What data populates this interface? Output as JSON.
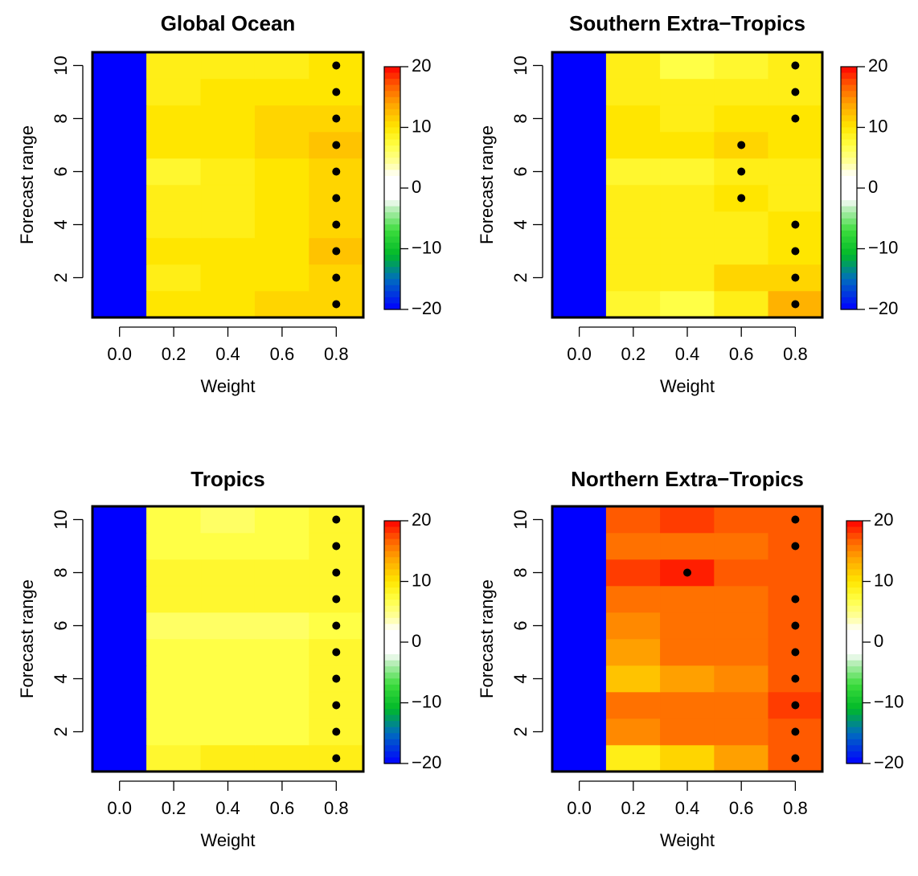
{
  "chart_data": [
    {
      "type": "heatmap",
      "title": "Global Ocean",
      "xlabel": "Weight",
      "ylabel": "Forecast range",
      "x": [
        0.0,
        0.2,
        0.4,
        0.6,
        0.8
      ],
      "y": [
        1,
        2,
        3,
        4,
        5,
        6,
        7,
        8,
        9,
        10
      ],
      "xticks": [
        "0.0",
        "0.2",
        "0.4",
        "0.6",
        "0.8"
      ],
      "yticks": [
        "2",
        "4",
        "6",
        "8",
        "10"
      ],
      "xlim": [
        -0.1,
        0.9
      ],
      "ylim": [
        0.5,
        10.5
      ],
      "values": [
        [
          -20,
          10,
          10,
          11,
          11
        ],
        [
          -20,
          9,
          10,
          10,
          11
        ],
        [
          -20,
          10,
          10,
          10,
          12
        ],
        [
          -20,
          9,
          9,
          10,
          11
        ],
        [
          -20,
          9,
          9,
          10,
          11
        ],
        [
          -20,
          8,
          9,
          10,
          11
        ],
        [
          -20,
          10,
          10,
          11,
          12
        ],
        [
          -20,
          10,
          10,
          11,
          11
        ],
        [
          -20,
          9,
          10,
          10,
          10
        ],
        [
          -20,
          9,
          9,
          9,
          10
        ]
      ],
      "significant": [
        [
          0.8,
          1
        ],
        [
          0.8,
          2
        ],
        [
          0.8,
          3
        ],
        [
          0.8,
          4
        ],
        [
          0.8,
          5
        ],
        [
          0.8,
          6
        ],
        [
          0.8,
          7
        ],
        [
          0.8,
          8
        ],
        [
          0.8,
          9
        ],
        [
          0.8,
          10
        ]
      ],
      "colorbar": {
        "ticks": [
          20,
          10,
          0,
          -10,
          -20
        ],
        "range": [
          -20,
          20
        ]
      }
    },
    {
      "type": "heatmap",
      "title": "Southern Extra−Tropics",
      "xlabel": "Weight",
      "ylabel": "Forecast range",
      "x": [
        0.0,
        0.2,
        0.4,
        0.6,
        0.8
      ],
      "y": [
        1,
        2,
        3,
        4,
        5,
        6,
        7,
        8,
        9,
        10
      ],
      "xticks": [
        "0.0",
        "0.2",
        "0.4",
        "0.6",
        "0.8"
      ],
      "yticks": [
        "2",
        "4",
        "6",
        "8",
        "10"
      ],
      "xlim": [
        -0.1,
        0.9
      ],
      "ylim": [
        0.5,
        10.5
      ],
      "values": [
        [
          -20,
          8,
          7,
          9,
          13
        ],
        [
          -20,
          9,
          9,
          11,
          11
        ],
        [
          -20,
          9,
          9,
          9,
          10
        ],
        [
          -20,
          9,
          9,
          9,
          10
        ],
        [
          -20,
          9,
          9,
          10,
          9
        ],
        [
          -20,
          8,
          8,
          9,
          9
        ],
        [
          -20,
          10,
          10,
          11,
          10
        ],
        [
          -20,
          10,
          9,
          10,
          10
        ],
        [
          -20,
          9,
          9,
          9,
          9
        ],
        [
          -20,
          9,
          7,
          8,
          9
        ]
      ],
      "significant": [
        [
          0.8,
          1
        ],
        [
          0.8,
          2
        ],
        [
          0.8,
          3
        ],
        [
          0.8,
          4
        ],
        [
          0.6,
          5
        ],
        [
          0.6,
          6
        ],
        [
          0.6,
          7
        ],
        [
          0.8,
          8
        ],
        [
          0.8,
          9
        ],
        [
          0.8,
          10
        ]
      ],
      "colorbar": {
        "ticks": [
          20,
          10,
          0,
          -10,
          -20
        ],
        "range": [
          -20,
          20
        ]
      }
    },
    {
      "type": "heatmap",
      "title": "Tropics",
      "xlabel": "Weight",
      "ylabel": "Forecast range",
      "x": [
        0.0,
        0.2,
        0.4,
        0.6,
        0.8
      ],
      "y": [
        1,
        2,
        3,
        4,
        5,
        6,
        7,
        8,
        9,
        10
      ],
      "xticks": [
        "0.0",
        "0.2",
        "0.4",
        "0.6",
        "0.8"
      ],
      "yticks": [
        "2",
        "4",
        "6",
        "8",
        "10"
      ],
      "xlim": [
        -0.1,
        0.9
      ],
      "ylim": [
        0.5,
        10.5
      ],
      "values": [
        [
          -20,
          8,
          9,
          9,
          9
        ],
        [
          -20,
          7,
          7,
          7,
          8
        ],
        [
          -20,
          7,
          7,
          7,
          8
        ],
        [
          -20,
          7,
          7,
          7,
          8
        ],
        [
          -20,
          7,
          7,
          7,
          8
        ],
        [
          -20,
          6,
          6,
          6,
          7
        ],
        [
          -20,
          8,
          8,
          8,
          8
        ],
        [
          -20,
          8,
          8,
          8,
          8
        ],
        [
          -20,
          7,
          7,
          7,
          8
        ],
        [
          -20,
          7,
          6,
          7,
          8
        ]
      ],
      "significant": [
        [
          0.8,
          1
        ],
        [
          0.8,
          2
        ],
        [
          0.8,
          3
        ],
        [
          0.8,
          4
        ],
        [
          0.8,
          5
        ],
        [
          0.8,
          6
        ],
        [
          0.8,
          7
        ],
        [
          0.8,
          8
        ],
        [
          0.8,
          9
        ],
        [
          0.8,
          10
        ]
      ],
      "colorbar": {
        "ticks": [
          20,
          10,
          0,
          -10,
          -20
        ],
        "range": [
          -20,
          20
        ]
      }
    },
    {
      "type": "heatmap",
      "title": "Northern Extra−Tropics",
      "xlabel": "Weight",
      "ylabel": "Forecast range",
      "x": [
        0.0,
        0.2,
        0.4,
        0.6,
        0.8
      ],
      "y": [
        1,
        2,
        3,
        4,
        5,
        6,
        7,
        8,
        9,
        10
      ],
      "xticks": [
        "0.0",
        "0.2",
        "0.4",
        "0.6",
        "0.8"
      ],
      "yticks": [
        "2",
        "4",
        "6",
        "8",
        "10"
      ],
      "xlim": [
        -0.1,
        0.9
      ],
      "ylim": [
        0.5,
        10.5
      ],
      "values": [
        [
          -20,
          9,
          11,
          14,
          17
        ],
        [
          -20,
          15,
          16,
          16,
          17
        ],
        [
          -20,
          16,
          16,
          16,
          18
        ],
        [
          -20,
          12,
          14,
          15,
          17
        ],
        [
          -20,
          14,
          16,
          16,
          17
        ],
        [
          -20,
          15,
          16,
          16,
          17
        ],
        [
          -20,
          16,
          16,
          16,
          17
        ],
        [
          -20,
          18,
          19,
          17,
          17
        ],
        [
          -20,
          16,
          16,
          16,
          17
        ],
        [
          -20,
          17,
          18,
          17,
          17
        ]
      ],
      "significant": [
        [
          0.8,
          1
        ],
        [
          0.8,
          2
        ],
        [
          0.8,
          3
        ],
        [
          0.8,
          4
        ],
        [
          0.8,
          5
        ],
        [
          0.8,
          6
        ],
        [
          0.8,
          7
        ],
        [
          0.4,
          8
        ],
        [
          0.8,
          9
        ],
        [
          0.8,
          10
        ]
      ],
      "colorbar": {
        "ticks": [
          20,
          10,
          0,
          -10,
          -20
        ],
        "range": [
          -20,
          20
        ]
      }
    }
  ]
}
